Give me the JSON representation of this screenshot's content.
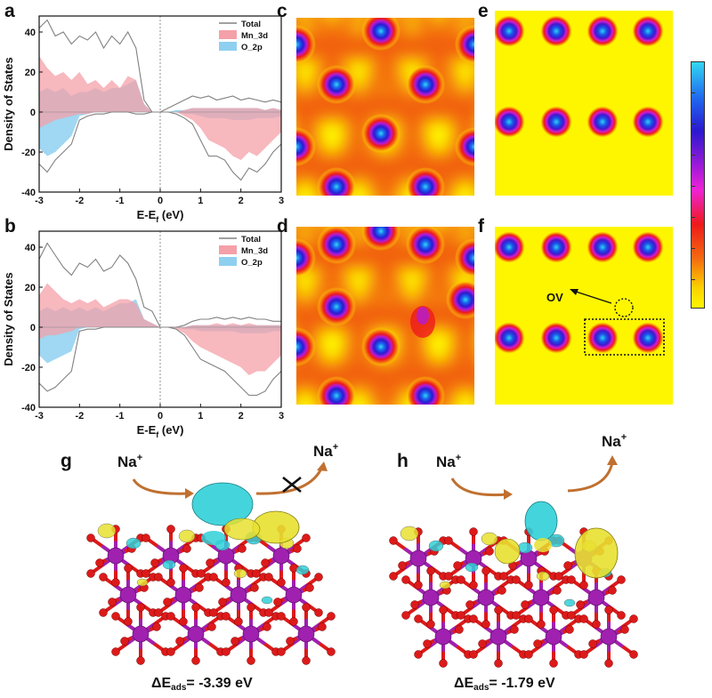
{
  "panels": {
    "a": "a",
    "b": "b",
    "c": "c",
    "d": "d",
    "e": "e",
    "f": "f",
    "g": "g",
    "h": "h"
  },
  "chart_data": [
    {
      "type": "area",
      "panel": "a",
      "ylabel": "Density of States",
      "xlabel": "E-E",
      "xlabel_sub": "f",
      "xlabel_unit": " (eV)",
      "xlim": [
        -3,
        3
      ],
      "ylim": [
        -40,
        48
      ],
      "xticks": [
        -3,
        -2,
        -1,
        0,
        1,
        2,
        3
      ],
      "yticks": [
        -40,
        -20,
        0,
        20,
        40
      ],
      "fermi_line": 0,
      "legend": [
        "Total",
        "Mn_3d",
        "O_2p"
      ],
      "legend_position": "top-right",
      "x": [
        -3.0,
        -2.8,
        -2.6,
        -2.4,
        -2.2,
        -2.0,
        -1.8,
        -1.6,
        -1.4,
        -1.2,
        -1.0,
        -0.8,
        -0.6,
        -0.4,
        -0.2,
        0.0,
        0.2,
        0.4,
        0.6,
        0.8,
        1.0,
        1.2,
        1.4,
        1.6,
        1.8,
        2.0,
        2.2,
        2.4,
        2.6,
        2.8,
        3.0
      ],
      "series": [
        {
          "name": "Total",
          "color": "#808080",
          "style": "line",
          "up": [
            42,
            46,
            38,
            40,
            34,
            38,
            36,
            40,
            32,
            38,
            34,
            40,
            32,
            6,
            0,
            0,
            2,
            4,
            6,
            8,
            7,
            8,
            6,
            7,
            8,
            6,
            7,
            6,
            5,
            6,
            5
          ],
          "down": [
            -26,
            -30,
            -24,
            -20,
            -16,
            -4,
            -2,
            -1,
            -1,
            0,
            0,
            0,
            -1,
            -1,
            0,
            0,
            0,
            -1,
            -3,
            -6,
            -14,
            -22,
            -22,
            -24,
            -30,
            -34,
            -28,
            -30,
            -26,
            -20,
            -16
          ]
        },
        {
          "name": "Mn_3d",
          "color": "#f4a0a8",
          "style": "fill",
          "up": [
            28,
            22,
            18,
            20,
            16,
            20,
            14,
            16,
            12,
            16,
            12,
            18,
            16,
            4,
            0,
            0,
            0,
            0,
            1,
            2,
            2,
            2,
            2,
            2,
            2,
            2,
            2,
            2,
            1,
            2,
            1
          ],
          "down": [
            -8,
            -6,
            -4,
            -3,
            -2,
            -1,
            -1,
            0,
            0,
            0,
            0,
            0,
            0,
            0,
            0,
            0,
            0,
            0,
            -2,
            -4,
            -8,
            -14,
            -16,
            -18,
            -22,
            -24,
            -20,
            -22,
            -18,
            -14,
            -10
          ]
        },
        {
          "name": "O_2p",
          "color": "#8fd0f0",
          "style": "fill",
          "up": [
            10,
            12,
            10,
            12,
            8,
            10,
            10,
            12,
            10,
            12,
            12,
            14,
            16,
            4,
            0,
            0,
            0,
            1,
            1,
            2,
            2,
            2,
            2,
            2,
            2,
            2,
            2,
            2,
            1,
            2,
            1
          ],
          "down": [
            -18,
            -22,
            -20,
            -16,
            -12,
            -2,
            -1,
            0,
            0,
            0,
            0,
            0,
            0,
            0,
            0,
            0,
            0,
            0,
            -1,
            -1,
            -2,
            -3,
            -3,
            -3,
            -4,
            -4,
            -4,
            -3,
            -3,
            -3,
            -2
          ]
        }
      ]
    },
    {
      "type": "area",
      "panel": "b",
      "ylabel": "Density of States",
      "xlabel": "E-E",
      "xlabel_sub": "f",
      "xlabel_unit": " (eV)",
      "xlim": [
        -3,
        3
      ],
      "ylim": [
        -40,
        48
      ],
      "xticks": [
        -3,
        -2,
        -1,
        0,
        1,
        2,
        3
      ],
      "yticks": [
        -40,
        -20,
        0,
        20,
        40
      ],
      "fermi_line": 0,
      "legend": [
        "Total",
        "Mn_3d",
        "O_2p"
      ],
      "legend_position": "top-right",
      "x": [
        -3.0,
        -2.8,
        -2.6,
        -2.4,
        -2.2,
        -2.0,
        -1.8,
        -1.6,
        -1.4,
        -1.2,
        -1.0,
        -0.8,
        -0.6,
        -0.4,
        -0.2,
        0.0,
        0.2,
        0.4,
        0.6,
        0.8,
        1.0,
        1.2,
        1.4,
        1.6,
        1.8,
        2.0,
        2.2,
        2.4,
        2.6,
        2.8,
        3.0
      ],
      "series": [
        {
          "name": "Total",
          "color": "#808080",
          "style": "line",
          "up": [
            34,
            42,
            36,
            30,
            26,
            32,
            30,
            34,
            28,
            30,
            36,
            32,
            24,
            10,
            8,
            0,
            0,
            0,
            1,
            3,
            4,
            4,
            5,
            4,
            5,
            4,
            5,
            4,
            4,
            3,
            3
          ],
          "down": [
            -28,
            -32,
            -30,
            -26,
            -22,
            -2,
            -1,
            -1,
            0,
            0,
            0,
            0,
            0,
            0,
            0,
            0,
            0,
            -1,
            -4,
            -10,
            -16,
            -18,
            -20,
            -22,
            -26,
            -30,
            -34,
            -34,
            -32,
            -26,
            -22
          ]
        },
        {
          "name": "Mn_3d",
          "color": "#f4a0a8",
          "style": "fill",
          "up": [
            16,
            22,
            18,
            14,
            12,
            14,
            12,
            14,
            10,
            12,
            14,
            14,
            12,
            4,
            2,
            0,
            0,
            0,
            0,
            1,
            1,
            1,
            2,
            1,
            2,
            1,
            2,
            1,
            1,
            1,
            1
          ],
          "down": [
            -6,
            -4,
            -4,
            -3,
            -2,
            0,
            0,
            0,
            0,
            0,
            0,
            0,
            0,
            0,
            0,
            0,
            0,
            -1,
            -3,
            -7,
            -10,
            -12,
            -14,
            -16,
            -18,
            -20,
            -24,
            -22,
            -22,
            -18,
            -14
          ]
        },
        {
          "name": "O_2p",
          "color": "#8fd0f0",
          "style": "fill",
          "up": [
            8,
            10,
            8,
            10,
            8,
            10,
            8,
            10,
            8,
            10,
            12,
            12,
            14,
            4,
            2,
            0,
            0,
            0,
            0,
            1,
            1,
            1,
            1,
            1,
            1,
            1,
            1,
            1,
            1,
            1,
            1
          ],
          "down": [
            -14,
            -18,
            -16,
            -14,
            -12,
            -1,
            0,
            0,
            0,
            0,
            0,
            0,
            0,
            0,
            0,
            0,
            0,
            0,
            -1,
            -1,
            -2,
            -2,
            -2,
            -2,
            -2,
            -3,
            -3,
            -3,
            -3,
            -2,
            -2
          ]
        }
      ]
    }
  ],
  "charge_maps": {
    "c": "c",
    "d": "d",
    "e": "e",
    "f": "f",
    "ov_label": "OV"
  },
  "structures": {
    "g": {
      "ion_in": "Na",
      "ion_out": "Na",
      "charge": "+",
      "energy_prefix": "ΔE",
      "energy_sub": "ads",
      "energy_value": "= -3.39 eV",
      "blocked": true
    },
    "h": {
      "ion_in": "Na",
      "ion_out": "Na",
      "charge": "+",
      "energy_prefix": "ΔE",
      "energy_sub": "ads",
      "energy_value": "= -1.79 eV",
      "blocked": false
    }
  },
  "colors": {
    "map_background": "#fef600",
    "arrow": "#c07030",
    "mn_atom": "#a020b0",
    "o_atom": "#dd1a1a",
    "iso_yellow": "#e8e030",
    "iso_cyan": "#30d0d8"
  }
}
